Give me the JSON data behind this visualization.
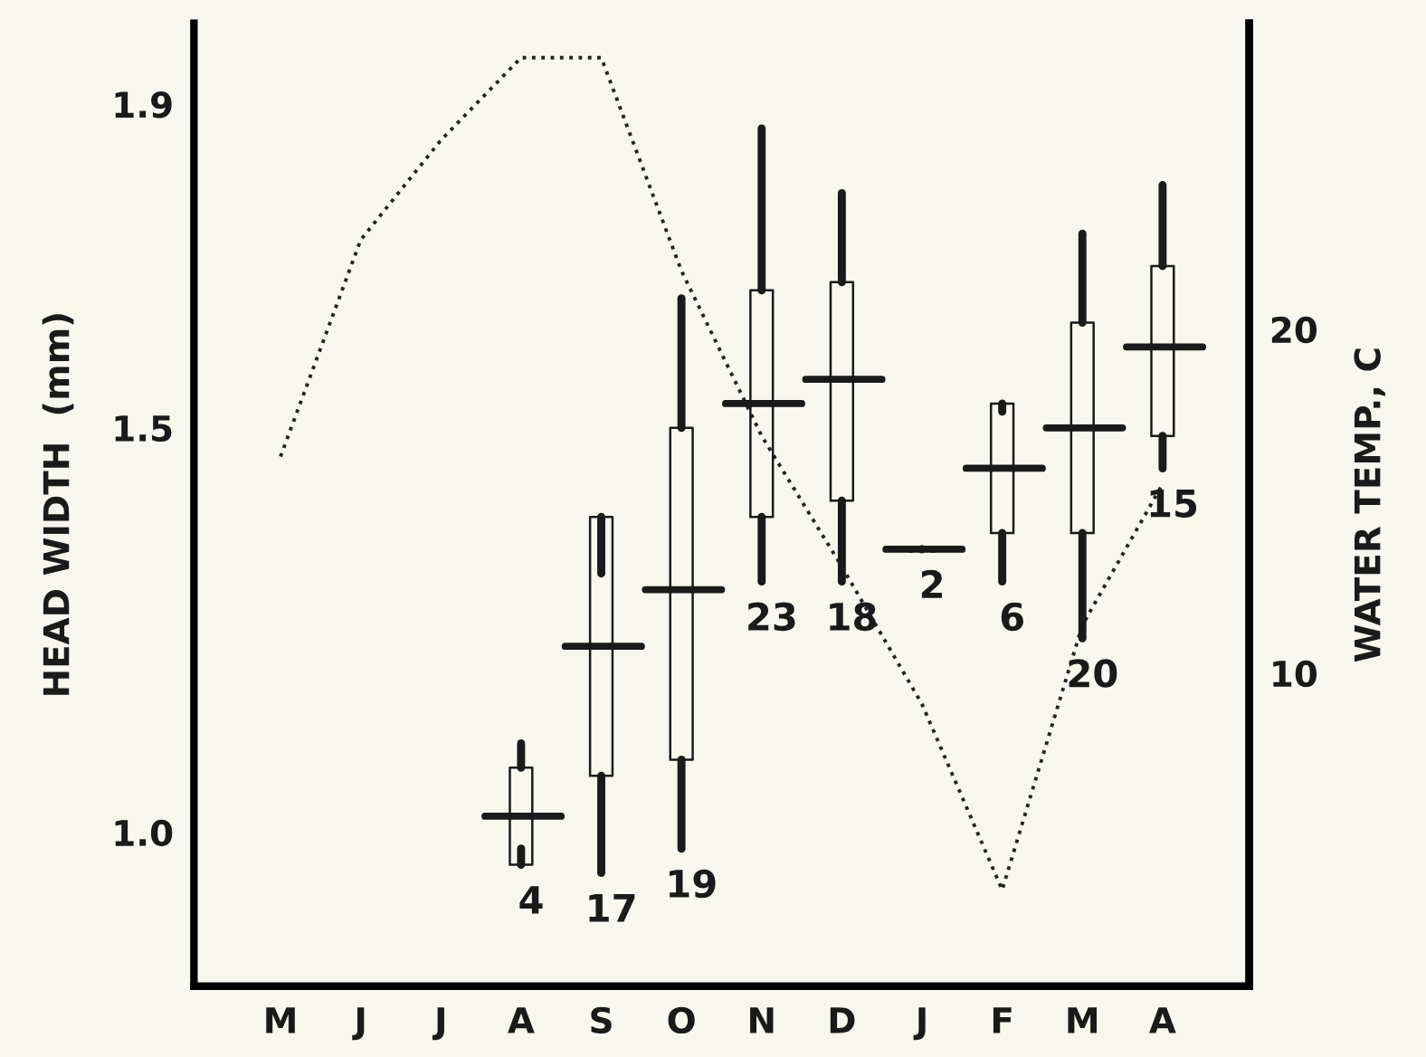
{
  "chart_data": {
    "type": "box",
    "ylabel": "HEAD WIDTH  (mm)",
    "y2label": "WATER TEMP., C",
    "categories": [
      "M",
      "J",
      "J",
      "A",
      "S",
      "O",
      "N",
      "D",
      "J",
      "F",
      "M",
      "A"
    ],
    "boxes": [
      null,
      null,
      null,
      {
        "low": 0.98,
        "q1": 0.96,
        "median": 1.02,
        "q3": 1.08,
        "high": 1.11
      },
      {
        "low": 0.95,
        "q1": 1.07,
        "median": 1.23,
        "q3": 1.39,
        "high": 1.32
      },
      {
        "low": 0.98,
        "q1": 1.09,
        "median": 1.3,
        "q3": 1.5,
        "high": 1.66
      },
      {
        "low": 1.31,
        "q1": 1.39,
        "median": 1.53,
        "q3": 1.67,
        "high": 1.87
      },
      {
        "low": 1.31,
        "q1": 1.41,
        "median": 1.56,
        "q3": 1.68,
        "high": 1.79
      },
      {
        "low": 1.35,
        "q1": 1.35,
        "median": 1.35,
        "q3": 1.35,
        "high": 1.35
      },
      {
        "low": 1.31,
        "q1": 1.37,
        "median": 1.45,
        "q3": 1.53,
        "high": 1.52
      },
      {
        "low": 1.24,
        "q1": 1.37,
        "median": 1.5,
        "q3": 1.63,
        "high": 1.74
      },
      {
        "low": 1.45,
        "q1": 1.49,
        "median": 1.6,
        "q3": 1.7,
        "high": 1.8
      }
    ],
    "value_labels": [
      null,
      null,
      null,
      "4",
      "17",
      "19",
      "23",
      "18",
      "2",
      "6",
      "20",
      "15"
    ],
    "series": [
      {
        "type": "line",
        "axis": "y2",
        "color": "#222222",
        "line_style": "dotted",
        "marker": "none",
        "values": [
          16.3,
          22.6,
          25.5,
          27.9,
          27.9,
          21.7,
          16.9,
          13.1,
          9.1,
          3.7,
          11.4,
          15.5
        ]
      }
    ],
    "ylim": [
      0.81,
      2.0
    ],
    "yticks": [
      {
        "value": 1.0,
        "label": "1.0"
      },
      1.5,
      1.9
    ],
    "y2lim": [
      0.9,
      28.9
    ],
    "y2ticks": [
      10,
      20
    ],
    "grid": false,
    "legend": false
  }
}
